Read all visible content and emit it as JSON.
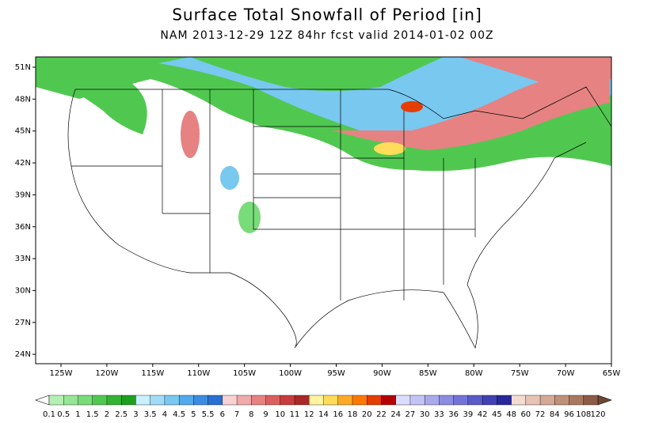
{
  "title": "Surface Total Snowfall of Period [in]",
  "subtitle": "NAM 2013-12-29 12Z 84hr fcst valid 2014-01-02 00Z",
  "lat_labels": [
    "51N",
    "48N",
    "45N",
    "42N",
    "39N",
    "36N",
    "33N",
    "30N",
    "27N",
    "24N"
  ],
  "lon_labels": [
    "125W",
    "120W",
    "115W",
    "110W",
    "105W",
    "100W",
    "95W",
    "90W",
    "85W",
    "80W",
    "75W",
    "70W",
    "65W"
  ],
  "colorbar": {
    "labels": [
      "0.1",
      "0.5",
      "1",
      "1.5",
      "2",
      "2.5",
      "3",
      "3.5",
      "4",
      "4.5",
      "5",
      "5.5",
      "6",
      "7",
      "8",
      "9",
      "10",
      "11",
      "12",
      "14",
      "16",
      "18",
      "20",
      "22",
      "24",
      "27",
      "30",
      "33",
      "36",
      "39",
      "42",
      "45",
      "48",
      "60",
      "72",
      "84",
      "96",
      "108",
      "120"
    ],
    "colors": [
      "#b4f0b4",
      "#96e696",
      "#78dc78",
      "#50c850",
      "#32b432",
      "#1ea01e",
      "#c8f0ff",
      "#a0dcf8",
      "#78c8f0",
      "#50aaeb",
      "#3c8ce1",
      "#2870d2",
      "#f8d2d2",
      "#f0aaaa",
      "#e68282",
      "#dc5f5f",
      "#c83c3c",
      "#aa2828",
      "#fff5a0",
      "#ffdc5a",
      "#ffaa28",
      "#ff7800",
      "#e63c00",
      "#b40000",
      "#dcdcff",
      "#c3c3f5",
      "#aaaaeb",
      "#8c8ce1",
      "#7373d7",
      "#5a5ac8",
      "#4141b4",
      "#28289b",
      "#f5dcd2",
      "#e6c3b4",
      "#d2aa96",
      "#be9178",
      "#aa785f",
      "#8c5a46"
    ]
  }
}
